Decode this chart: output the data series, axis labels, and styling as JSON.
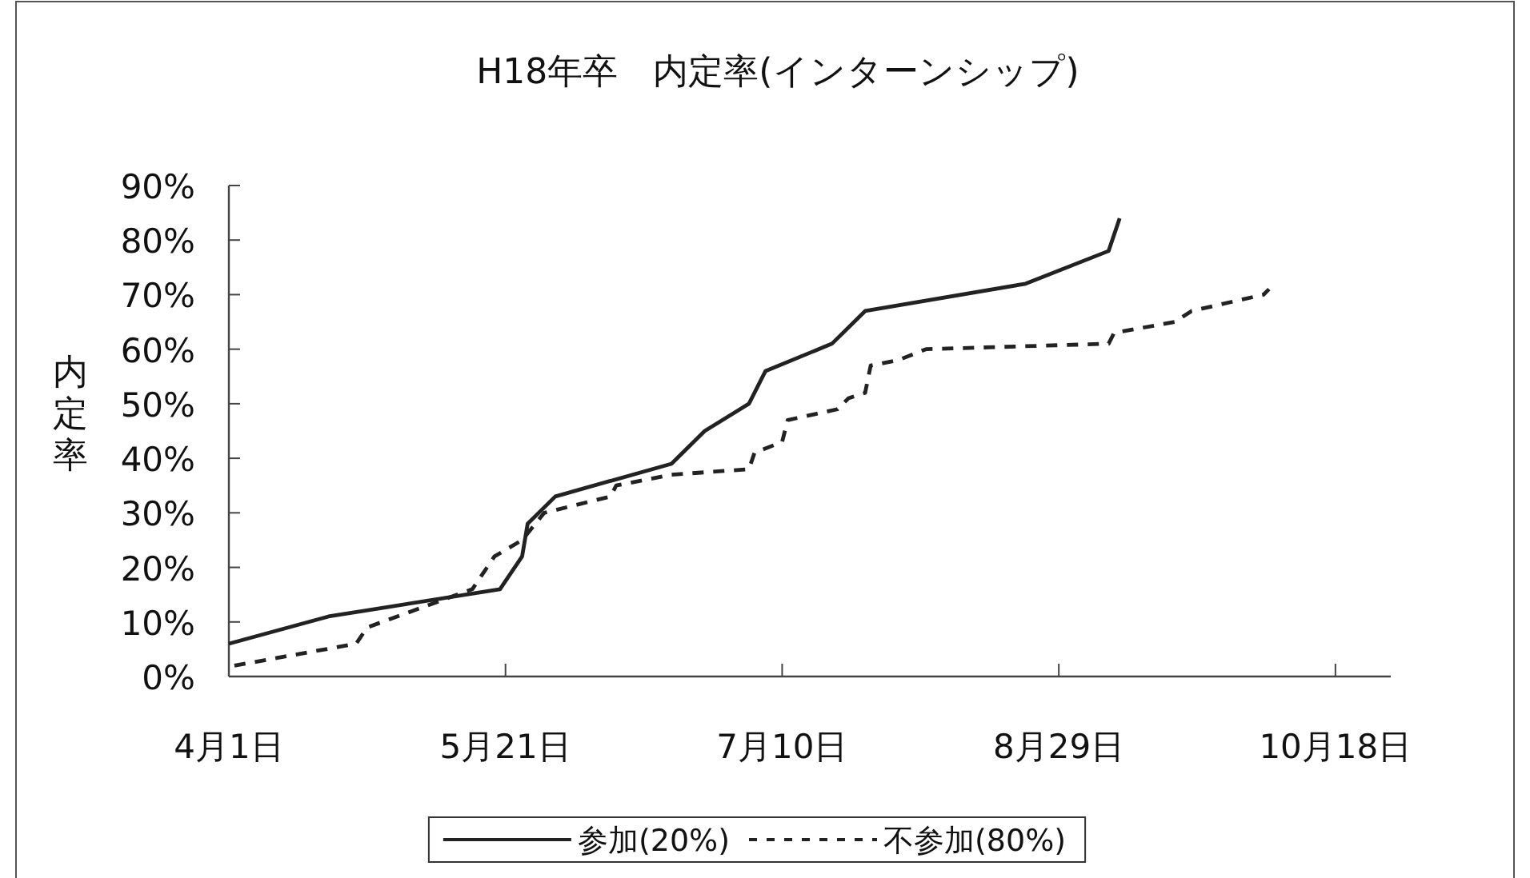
{
  "chart_data": {
    "type": "line",
    "title": "H18年卒　内定率(インターンシップ)",
    "ylabel": "内定率",
    "xlim": [
      "--04-01",
      "--10-28"
    ],
    "xticks": [
      {
        "value": "--04-01",
        "label": "4月1日"
      },
      {
        "value": "--05-21",
        "label": "5月21日"
      },
      {
        "value": "--07-10",
        "label": "7月10日"
      },
      {
        "value": "--08-29",
        "label": "8月29日"
      },
      {
        "value": "--10-18",
        "label": "10月18日"
      }
    ],
    "ylim": [
      0,
      90
    ],
    "yticks": [
      {
        "value": 0,
        "label": "0%"
      },
      {
        "value": 10,
        "label": "10%"
      },
      {
        "value": 20,
        "label": "20%"
      },
      {
        "value": 30,
        "label": "30%"
      },
      {
        "value": 40,
        "label": "40%"
      },
      {
        "value": 50,
        "label": "50%"
      },
      {
        "value": 60,
        "label": "60%"
      },
      {
        "value": 70,
        "label": "70%"
      },
      {
        "value": 80,
        "label": "80%"
      },
      {
        "value": 90,
        "label": "90%"
      }
    ],
    "legend": "bottom",
    "series": [
      {
        "name": "参加(20%)",
        "color": "#222222",
        "line_style": "solid",
        "x": [
          "--04-01",
          "--04-19",
          "--05-20",
          "--05-24",
          "--05-25",
          "--05-30",
          "--06-20",
          "--06-26",
          "--07-04",
          "--07-07",
          "--07-19",
          "--07-25",
          "--08-23",
          "--09-07",
          "--09-09"
        ],
        "values": [
          6,
          11,
          16,
          22,
          28,
          33,
          39,
          45,
          50,
          56,
          61,
          67,
          72,
          78,
          84
        ]
      },
      {
        "name": "不参加(80%)",
        "color": "#222222",
        "line_style": "dashed",
        "x": [
          "--04-02",
          "--04-24",
          "--04-26",
          "--05-15",
          "--05-17",
          "--05-19",
          "--05-24",
          "--05-28",
          "--06-09",
          "--06-10",
          "--06-20",
          "--07-04",
          "--07-05",
          "--07-10",
          "--07-11",
          "--07-20",
          "--07-22",
          "--07-25",
          "--07-26",
          "--07-31",
          "--08-05",
          "--09-07",
          "--09-08",
          "--09-19",
          "--09-22",
          "--10-05",
          "--10-06"
        ],
        "values": [
          2,
          6,
          9,
          16,
          19,
          22,
          25,
          30,
          33,
          35,
          37,
          38,
          41,
          43,
          47,
          49,
          51,
          52,
          57,
          58,
          60,
          61,
          63,
          65,
          67,
          70,
          71
        ]
      }
    ]
  }
}
